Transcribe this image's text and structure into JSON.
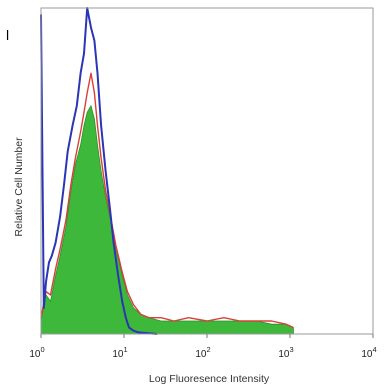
{
  "panel_label": "l",
  "chart_data": {
    "type": "area",
    "title": "",
    "xlabel": "Log Fluoresence Intensity",
    "ylabel": "Relative Cell Number",
    "x_scale": "log",
    "xlim": [
      1,
      10000
    ],
    "ylim": [
      0,
      100
    ],
    "x_ticks": [
      1,
      10,
      100,
      1000,
      10000
    ],
    "x_tick_labels": [
      {
        "base": "10",
        "exp": "0"
      },
      {
        "base": "10",
        "exp": "1"
      },
      {
        "base": "10",
        "exp": "2"
      },
      {
        "base": "10",
        "exp": "3"
      },
      {
        "base": "10",
        "exp": "4"
      }
    ],
    "grid": false,
    "legend": false,
    "series": [
      {
        "render": "filled",
        "fill": "#3db83a",
        "stroke": "#2f8f2c",
        "x": [
          1,
          1.15,
          1.3,
          1.5,
          1.7,
          2.0,
          2.3,
          2.6,
          3.0,
          3.3,
          3.6,
          4.0,
          4.4,
          4.8,
          5.3,
          6.0,
          7.0,
          8.0,
          9.5,
          11,
          13,
          16,
          20,
          28,
          40,
          60,
          100,
          160,
          250,
          400,
          600,
          900,
          1100
        ],
        "y": [
          4,
          12,
          10,
          18,
          24,
          33,
          44,
          52,
          58,
          64,
          68,
          70,
          66,
          58,
          50,
          42,
          34,
          26,
          18,
          12,
          8,
          6,
          5,
          4,
          4,
          4,
          4,
          4,
          4,
          4,
          3,
          3,
          2
        ]
      },
      {
        "render": "line",
        "color": "#d9403a",
        "x": [
          1,
          1.15,
          1.3,
          1.5,
          1.7,
          2.0,
          2.3,
          2.6,
          3.0,
          3.3,
          3.6,
          4.0,
          4.4,
          4.8,
          5.3,
          6.0,
          7.0,
          8.0,
          9.5,
          11,
          13,
          16,
          20,
          28,
          40,
          60,
          100,
          160,
          250,
          400,
          600,
          900,
          1100
        ],
        "y": [
          5,
          13,
          12,
          20,
          26,
          35,
          46,
          54,
          62,
          68,
          74,
          80,
          74,
          64,
          54,
          44,
          35,
          27,
          19,
          13,
          9,
          6,
          5,
          5,
          4,
          5,
          4,
          5,
          4,
          4,
          4,
          3,
          2
        ]
      },
      {
        "render": "line",
        "color": "#2b35b5",
        "x": [
          1,
          1.08,
          1.15,
          1.25,
          1.35,
          1.5,
          1.7,
          1.9,
          2.1,
          2.4,
          2.7,
          3.0,
          3.3,
          3.6,
          4.0,
          4.4,
          4.8,
          5.3,
          6.0,
          6.8,
          7.5,
          8.5,
          9.5,
          10.5,
          11.5,
          13,
          15,
          18,
          25
        ],
        "y": [
          98,
          8,
          16,
          22,
          24,
          28,
          36,
          46,
          56,
          64,
          70,
          80,
          86,
          100,
          94,
          90,
          80,
          64,
          50,
          38,
          28,
          18,
          10,
          5,
          2,
          1,
          0.5,
          0.3,
          0
        ]
      }
    ]
  }
}
